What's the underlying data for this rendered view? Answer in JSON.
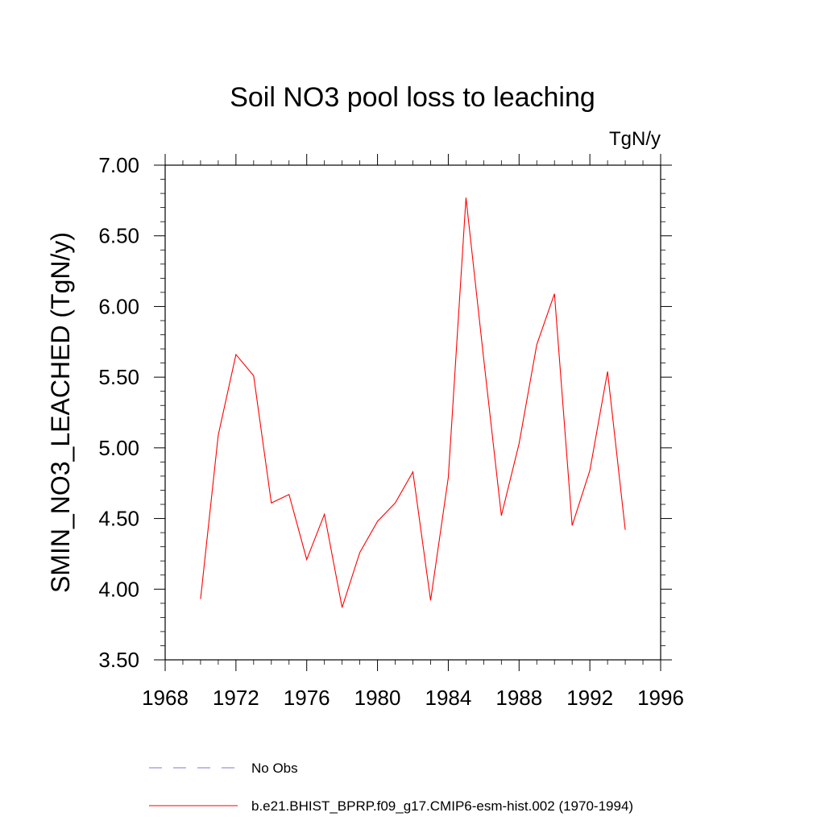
{
  "chart_data": {
    "type": "line",
    "title": "Soil NO3 pool loss to leaching",
    "units_label": "TgN/y",
    "ylabel": "SMIN_NO3_LEACHED  (TgN/y)",
    "xlabel": "",
    "xlim": [
      1968,
      1996
    ],
    "ylim": [
      3.5,
      7.0
    ],
    "x_ticks": [
      1968,
      1972,
      1976,
      1980,
      1984,
      1988,
      1992,
      1996
    ],
    "x_tick_labels": [
      "1968",
      "1972",
      "1976",
      "1980",
      "1984",
      "1988",
      "1992",
      "1996"
    ],
    "y_ticks": [
      3.5,
      4.0,
      4.5,
      5.0,
      5.5,
      6.0,
      6.5,
      7.0
    ],
    "y_tick_labels": [
      "3.50",
      "4.00",
      "4.50",
      "5.00",
      "5.50",
      "6.00",
      "6.50",
      "7.00"
    ],
    "grid": false,
    "legend_position": "bottom",
    "series": [
      {
        "name": "b.e21.BHIST_BPRP.f09_g17.CMIP6-esm-hist.002 (1970-1994)",
        "color": "#ff0000",
        "style": "solid",
        "x": [
          1970,
          1971,
          1972,
          1973,
          1974,
          1975,
          1976,
          1977,
          1978,
          1979,
          1980,
          1981,
          1982,
          1983,
          1984,
          1985,
          1986,
          1987,
          1988,
          1989,
          1990,
          1991,
          1992,
          1993,
          1994
        ],
        "y": [
          3.93,
          5.09,
          5.66,
          5.51,
          4.61,
          4.67,
          4.21,
          4.53,
          3.87,
          4.26,
          4.48,
          4.61,
          4.83,
          3.92,
          4.79,
          6.77,
          5.63,
          4.52,
          5.03,
          5.73,
          6.09,
          4.45,
          4.84,
          5.54,
          4.42
        ]
      },
      {
        "name": "No Obs",
        "color": "#9b93d6",
        "style": "dashed",
        "x": [],
        "y": []
      }
    ]
  }
}
